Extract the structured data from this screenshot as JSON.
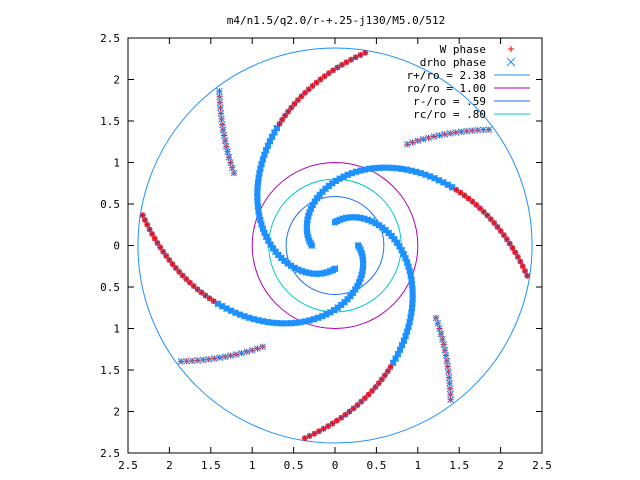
{
  "chart_data": {
    "type": "scatter",
    "title": "m4/n1.5/q2.0/r-+.25-j130/M5.0/512",
    "xlabel": "",
    "ylabel": "",
    "xlim": [
      -2.5,
      2.5
    ],
    "ylim": [
      -2.5,
      2.5
    ],
    "grid": false,
    "legend_position": "top-right",
    "x_tick_labels": [
      "2.5",
      "2",
      "1.5",
      "1",
      "0.5",
      "0",
      "0.5",
      "1",
      "1.5",
      "2",
      "2.5"
    ],
    "y_tick_labels": [
      "2.5",
      "2",
      "1.5",
      "1",
      "0.5",
      "0",
      "0.5",
      "1",
      "1.5",
      "2",
      "2.5"
    ],
    "legend": [
      {
        "label": "W phase",
        "color": "#ff0000",
        "marker": "plus"
      },
      {
        "label": "drho phase",
        "color": "#1e90ff",
        "marker": "cross"
      },
      {
        "label": "r+/ro = 2.38",
        "color": "#1e90ff",
        "marker": "line"
      },
      {
        "label": "ro/ro = 1.00",
        "color": "#b000b0",
        "marker": "line"
      },
      {
        "label": "r-/ro = .59",
        "color": "#1e6eff",
        "marker": "line"
      },
      {
        "label": "rc/ro = .80",
        "color": "#00c8d0",
        "marker": "line"
      }
    ],
    "circles": [
      {
        "r": 2.38,
        "color": "#1e90ff"
      },
      {
        "r": 1.0,
        "color": "#b000b0"
      },
      {
        "r": 0.59,
        "color": "#1e6eff"
      },
      {
        "r": 0.8,
        "color": "#00c8d0"
      }
    ],
    "pattern": {
      "arms": 4,
      "r_min": 0.28,
      "r_max": 2.35,
      "theta0_deg": 180,
      "winding": 1.55
    },
    "colors": {
      "w_phase": "#ff0000",
      "drho_phase": "#1e90ff",
      "square_fill": "#a05080"
    }
  }
}
